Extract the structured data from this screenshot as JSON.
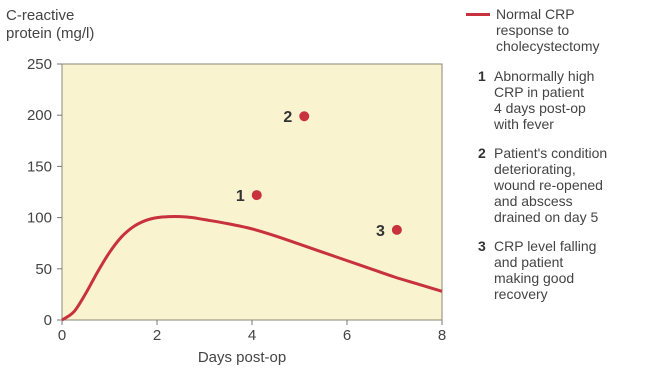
{
  "chart_data": {
    "type": "line",
    "ylabel": "C-reactive protein (mg/l)",
    "ylabel_lines": [
      "C-reactive",
      "protein (mg/l)"
    ],
    "xlabel": "Days post-op",
    "xlim": [
      0,
      8
    ],
    "ylim": [
      0,
      250
    ],
    "x_ticks": [
      0,
      2,
      4,
      6,
      8
    ],
    "y_ticks": [
      0,
      50,
      100,
      150,
      200,
      250
    ],
    "grid": false,
    "series": [
      {
        "name": "Normal CRP response to cholecystectomy",
        "color": "#c8323c",
        "x": [
          0,
          0.25,
          0.5,
          0.75,
          1,
          1.25,
          1.5,
          1.75,
          2,
          2.25,
          2.5,
          2.75,
          3,
          3.5,
          4,
          4.5,
          5,
          5.5,
          6,
          6.5,
          7,
          7.5,
          8
        ],
        "y": [
          0,
          8,
          26,
          47,
          66,
          81,
          91,
          97,
          100,
          101,
          101,
          100,
          98,
          94,
          89,
          82,
          74,
          66,
          58,
          50,
          42,
          35,
          28
        ]
      }
    ],
    "points": [
      {
        "label": "1",
        "x": 4.1,
        "y": 122,
        "color": "#c8323c"
      },
      {
        "label": "2",
        "x": 5.1,
        "y": 199,
        "color": "#c8323c"
      },
      {
        "label": "3",
        "x": 7.05,
        "y": 88,
        "color": "#c8323c"
      }
    ],
    "plot_background": "#faf3cf"
  },
  "legend": {
    "series_label": "Normal CRP response to cholecystectomy",
    "series_label_lines": [
      "Normal CRP",
      "response to",
      "cholecystectomy"
    ],
    "notes": [
      {
        "num": "1",
        "lines": [
          "Abnormally high",
          "CRP in patient",
          "4 days post-op",
          "with fever"
        ]
      },
      {
        "num": "2",
        "lines": [
          "Patient's condition",
          "deteriorating,",
          "wound re-opened",
          "and abscess",
          "drained on day 5"
        ]
      },
      {
        "num": "3",
        "lines": [
          "CRP level falling",
          "and patient",
          "making good",
          "recovery"
        ]
      }
    ]
  }
}
